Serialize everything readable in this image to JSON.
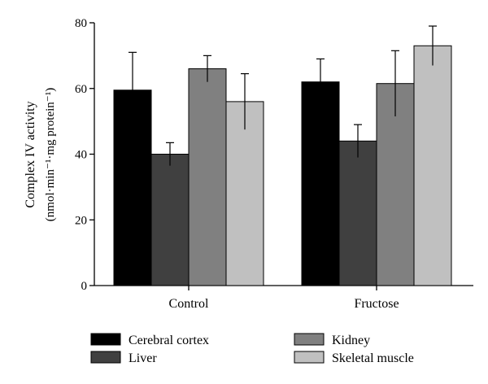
{
  "chart_data": {
    "type": "bar",
    "categories": [
      "Control",
      "Fructose"
    ],
    "ylabel_line1": "Complex IV activity",
    "ylabel_line2": "(nmol·min⁻¹·mg protein⁻¹)",
    "xlabel": "",
    "ylim": [
      0,
      80
    ],
    "yticks": [
      "0",
      "20",
      "40",
      "60",
      "80"
    ],
    "legend_position": "bottom",
    "series": [
      {
        "name": "Cerebral cortex",
        "color": "#000000",
        "values": [
          59.5,
          62.0
        ],
        "errors": [
          11.5,
          7.0
        ]
      },
      {
        "name": "Liver",
        "color": "#404040",
        "values": [
          40.0,
          44.0
        ],
        "errors": [
          3.5,
          5.0
        ]
      },
      {
        "name": "Kidney",
        "color": "#808080",
        "values": [
          66.0,
          61.5
        ],
        "errors": [
          4.0,
          10.0
        ]
      },
      {
        "name": "Skeletal muscle",
        "color": "#c0c0c0",
        "values": [
          56.0,
          73.0
        ],
        "errors": [
          8.5,
          6.0
        ]
      }
    ]
  }
}
